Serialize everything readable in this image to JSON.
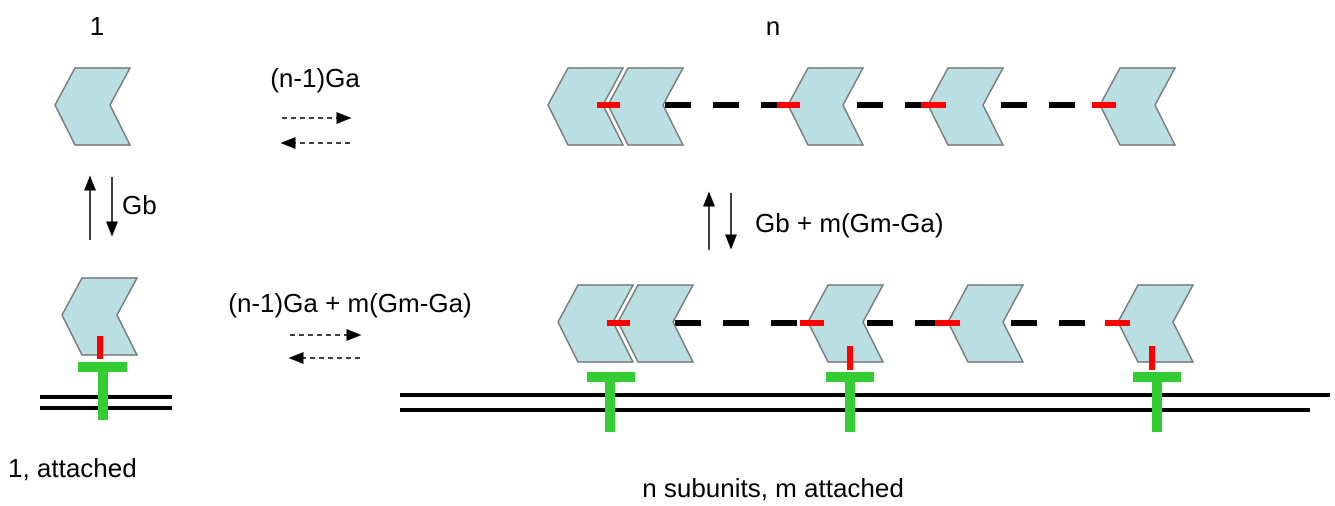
{
  "labels": {
    "single": "1",
    "polymer": "n",
    "polymerize_free": "(n-1)Ga",
    "attach_single": "Gb",
    "attach_polymer": "Gb + m(Gm-Ga)",
    "polymerize_attached": "(n-1)Ga + m(Gm-Ga)",
    "single_attached": "1, attached",
    "polymer_attached": "n subunits, m attached"
  }
}
